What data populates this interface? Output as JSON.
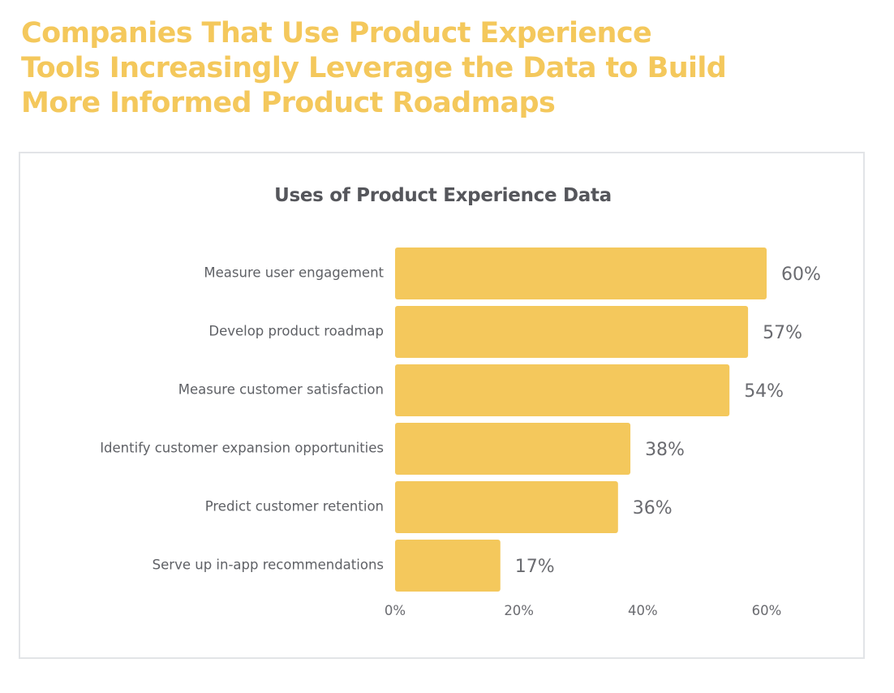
{
  "headline": {
    "line1": "Companies That Use Product Experience",
    "line2": "Tools Increasingly Leverage the Data to Build",
    "line3": "More Informed Product Roadmaps"
  },
  "colors": {
    "headline": "#f4c85c",
    "bar": "#f4c85c",
    "card_border": "#e2e4e7"
  },
  "chart_data": {
    "type": "bar",
    "orientation": "horizontal",
    "title": "Uses of Product Experience Data",
    "categories": [
      "Measure user engagement",
      "Develop product roadmap",
      "Measure customer satisfaction",
      "Identify customer expansion opportunities",
      "Predict customer retention",
      "Serve up in-app recommendations"
    ],
    "values": [
      60,
      57,
      54,
      38,
      36,
      17
    ],
    "value_labels": [
      "60%",
      "57%",
      "54%",
      "38%",
      "36%",
      "17%"
    ],
    "xlim": [
      0,
      60
    ],
    "xticks": [
      0,
      20,
      40,
      60
    ],
    "xtick_labels": [
      "0%",
      "20%",
      "40%",
      "60%"
    ],
    "grid": false,
    "legend": "none"
  }
}
